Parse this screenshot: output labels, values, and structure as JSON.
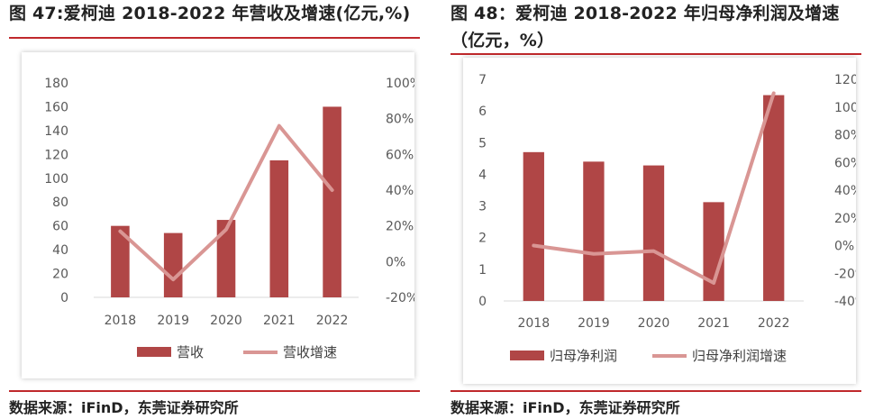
{
  "colors": {
    "bar": "#B04646",
    "line": "#D99694",
    "accent_rule": "#C0292C"
  },
  "figures": [
    {
      "title": "图 47:爱柯迪 2018-2022 年营收及增速(亿元,%)",
      "source": "数据来源：iFinD，东莞证券研究所"
    },
    {
      "title_line1": "图 48：爱柯迪 2018-2022 年归母净利润及增速",
      "title_line2": "（亿元，%）",
      "source": "数据来源：iFinD，东莞证券研究所"
    }
  ],
  "chart_data": [
    {
      "type": "bar",
      "categories": [
        "2018",
        "2019",
        "2020",
        "2021",
        "2022"
      ],
      "series": [
        {
          "name": "营收",
          "type": "bar",
          "axis": "left",
          "values": [
            60,
            54,
            65,
            115,
            160
          ]
        },
        {
          "name": "营收增速",
          "type": "line",
          "axis": "right",
          "values": [
            17,
            -10,
            18,
            76,
            40
          ]
        }
      ],
      "left_axis": {
        "min": 0,
        "max": 180,
        "step": 20,
        "tick_labels": [
          "0",
          "20",
          "40",
          "60",
          "80",
          "100",
          "120",
          "140",
          "160",
          "180"
        ]
      },
      "right_axis": {
        "min": -20,
        "max": 100,
        "step": 20,
        "tick_labels": [
          "-20%",
          "0%",
          "20%",
          "40%",
          "60%",
          "80%",
          "100%"
        ]
      },
      "grid": false,
      "legend_position": "bottom"
    },
    {
      "type": "bar",
      "categories": [
        "2018",
        "2019",
        "2020",
        "2021",
        "2022"
      ],
      "series": [
        {
          "name": "归母净利润",
          "type": "bar",
          "axis": "left",
          "values": [
            4.7,
            4.4,
            4.28,
            3.12,
            6.5
          ]
        },
        {
          "name": "归母净利润增速",
          "type": "line",
          "axis": "right",
          "values": [
            0,
            -6,
            -4,
            -27,
            110
          ]
        }
      ],
      "left_axis": {
        "min": 0,
        "max": 7,
        "step": 1,
        "tick_labels": [
          "0",
          "1",
          "2",
          "3",
          "4",
          "5",
          "6",
          "7"
        ]
      },
      "right_axis": {
        "min": -40,
        "max": 120,
        "step": 20,
        "tick_labels": [
          "-40%",
          "-20%",
          "0%",
          "20%",
          "40%",
          "60%",
          "80%",
          "100%",
          "120%"
        ]
      },
      "grid": false,
      "legend_position": "bottom"
    }
  ]
}
